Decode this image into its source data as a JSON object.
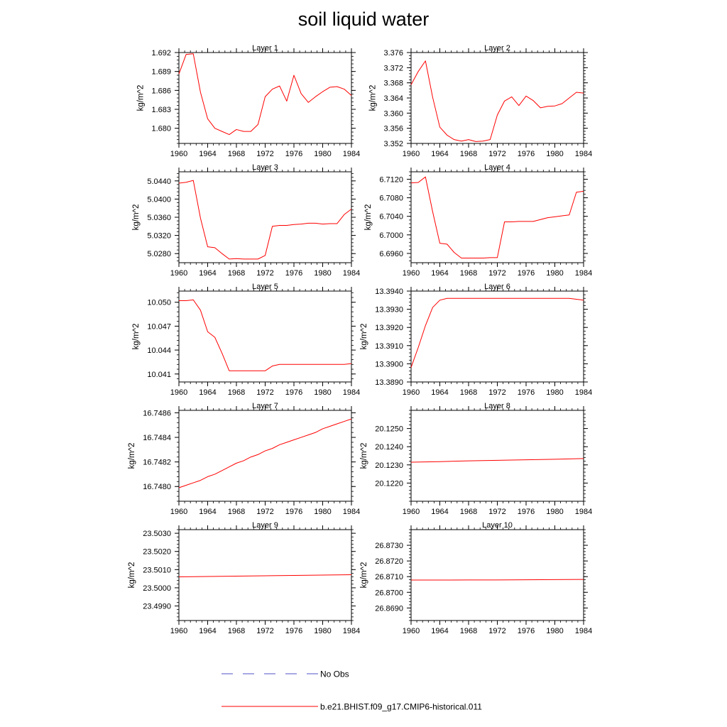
{
  "figure": {
    "title": "soil liquid water",
    "legend": [
      {
        "label": "No Obs",
        "color": "#5050c8",
        "dash": true
      },
      {
        "label": "b.e21.BHIST.f09_g17.CMIP6-historical.011",
        "color": "#ff0000",
        "dash": false
      }
    ]
  },
  "chart_data": [
    {
      "type": "line",
      "title": "Layer 1",
      "ylabel": "kg/m^2",
      "xlim": [
        1960,
        1984
      ],
      "ylim": [
        1.6776,
        1.692
      ],
      "xticks": [
        1960,
        1964,
        1968,
        1972,
        1976,
        1980,
        1984
      ],
      "yticks": [
        1.68,
        1.683,
        1.686,
        1.689,
        1.692
      ],
      "ytick_labels": [
        "1.680",
        "1.683",
        "1.686",
        "1.689",
        "1.692"
      ],
      "series": [
        {
          "color": "#ff0000",
          "x": [
            1960,
            1961,
            1962,
            1963,
            1964,
            1965,
            1966,
            1967,
            1968,
            1969,
            1970,
            1971,
            1972,
            1973,
            1974,
            1975,
            1976,
            1977,
            1978,
            1979,
            1980,
            1981,
            1982,
            1983,
            1984
          ],
          "y": [
            1.6886,
            1.6917,
            1.6918,
            1.6857,
            1.6815,
            1.68,
            1.6795,
            1.679,
            1.6798,
            1.6795,
            1.6795,
            1.6806,
            1.685,
            1.6862,
            1.6867,
            1.6843,
            1.6884,
            1.6855,
            1.6841,
            1.685,
            1.6858,
            1.6865,
            1.6866,
            1.6862,
            1.6852
          ]
        }
      ]
    },
    {
      "type": "line",
      "title": "Layer 2",
      "ylabel": "kg/m^2",
      "xlim": [
        1960,
        1984
      ],
      "ylim": [
        3.352,
        3.376
      ],
      "xticks": [
        1960,
        1964,
        1968,
        1972,
        1976,
        1980,
        1984
      ],
      "yticks": [
        3.352,
        3.356,
        3.36,
        3.364,
        3.368,
        3.372,
        3.376
      ],
      "ytick_labels": [
        "3.352",
        "3.356",
        "3.360",
        "3.364",
        "3.368",
        "3.372",
        "3.376"
      ],
      "series": [
        {
          "color": "#ff0000",
          "x": [
            1960,
            1961,
            1962,
            1963,
            1964,
            1965,
            1966,
            1967,
            1968,
            1969,
            1970,
            1971,
            1972,
            1973,
            1974,
            1975,
            1976,
            1977,
            1978,
            1979,
            1980,
            1981,
            1982,
            1983,
            1984
          ],
          "y": [
            3.3675,
            3.371,
            3.3738,
            3.3642,
            3.3563,
            3.3542,
            3.353,
            3.3526,
            3.353,
            3.3525,
            3.3526,
            3.353,
            3.3595,
            3.3632,
            3.3643,
            3.362,
            3.3645,
            3.3633,
            3.3614,
            3.3618,
            3.3619,
            3.3625,
            3.364,
            3.3655,
            3.3653
          ]
        }
      ]
    },
    {
      "type": "line",
      "title": "Layer 3",
      "ylabel": "kg/m^2",
      "xlim": [
        1960,
        1984
      ],
      "ylim": [
        5.026,
        5.046
      ],
      "xticks": [
        1960,
        1964,
        1968,
        1972,
        1976,
        1980,
        1984
      ],
      "yticks": [
        5.028,
        5.032,
        5.036,
        5.04,
        5.044
      ],
      "ytick_labels": [
        "5.0280",
        "5.0320",
        "5.0360",
        "5.0400",
        "5.0440"
      ],
      "series": [
        {
          "color": "#ff0000",
          "x": [
            1960,
            1961,
            1962,
            1963,
            1964,
            1965,
            1966,
            1967,
            1968,
            1969,
            1970,
            1971,
            1972,
            1973,
            1974,
            1975,
            1976,
            1977,
            1978,
            1979,
            1980,
            1981,
            1982,
            1983,
            1984
          ],
          "y": [
            5.0435,
            5.0437,
            5.0441,
            5.0358,
            5.0295,
            5.0293,
            5.028,
            5.0268,
            5.0269,
            5.0268,
            5.0268,
            5.0268,
            5.0276,
            5.034,
            5.0342,
            5.0342,
            5.0344,
            5.0345,
            5.0347,
            5.0347,
            5.0345,
            5.0346,
            5.0346,
            5.0366,
            5.0378
          ]
        }
      ]
    },
    {
      "type": "line",
      "title": "Layer 4",
      "ylabel": "kg/m^2",
      "xlim": [
        1960,
        1984
      ],
      "ylim": [
        6.694,
        6.7136
      ],
      "xticks": [
        1960,
        1964,
        1968,
        1972,
        1976,
        1980,
        1984
      ],
      "yticks": [
        6.696,
        6.7,
        6.704,
        6.708,
        6.712
      ],
      "ytick_labels": [
        "6.6960",
        "6.7000",
        "6.7040",
        "6.7080",
        "6.7120"
      ],
      "series": [
        {
          "color": "#ff0000",
          "x": [
            1960,
            1961,
            1962,
            1963,
            1964,
            1965,
            1966,
            1967,
            1968,
            1969,
            1970,
            1971,
            1972,
            1973,
            1974,
            1975,
            1976,
            1977,
            1978,
            1979,
            1980,
            1981,
            1982,
            1983,
            1984
          ],
          "y": [
            6.7112,
            6.7113,
            6.7125,
            6.705,
            6.6982,
            6.698,
            6.6962,
            6.695,
            6.695,
            6.695,
            6.695,
            6.6951,
            6.6951,
            6.7028,
            6.7028,
            6.7029,
            6.7029,
            6.7029,
            6.7033,
            6.7037,
            6.7039,
            6.7041,
            6.7043,
            6.7092,
            6.7094
          ]
        }
      ]
    },
    {
      "type": "line",
      "title": "Layer 5",
      "ylabel": "kg/m^2",
      "xlim": [
        1960,
        1984
      ],
      "ylim": [
        10.04,
        10.0514
      ],
      "xticks": [
        1960,
        1964,
        1968,
        1972,
        1976,
        1980,
        1984
      ],
      "yticks": [
        10.041,
        10.044,
        10.047,
        10.05
      ],
      "ytick_labels": [
        "10.041",
        "10.044",
        "10.047",
        "10.050"
      ],
      "series": [
        {
          "color": "#ff0000",
          "x": [
            1960,
            1961,
            1962,
            1963,
            1964,
            1965,
            1966,
            1967,
            1968,
            1969,
            1970,
            1971,
            1972,
            1973,
            1974,
            1975,
            1976,
            1977,
            1978,
            1979,
            1980,
            1981,
            1982,
            1983,
            1984
          ],
          "y": [
            10.0502,
            10.0502,
            10.0503,
            10.049,
            10.0463,
            10.0456,
            10.0436,
            10.0414,
            10.0414,
            10.0414,
            10.0414,
            10.0414,
            10.0414,
            10.042,
            10.0422,
            10.0422,
            10.0422,
            10.0422,
            10.0422,
            10.0422,
            10.0422,
            10.0422,
            10.0422,
            10.0422,
            10.0423
          ]
        }
      ]
    },
    {
      "type": "line",
      "title": "Layer 6",
      "ylabel": "kg/m^2",
      "xlim": [
        1960,
        1984
      ],
      "ylim": [
        13.389,
        13.394
      ],
      "xticks": [
        1960,
        1964,
        1968,
        1972,
        1976,
        1980,
        1984
      ],
      "yticks": [
        13.389,
        13.39,
        13.391,
        13.392,
        13.393,
        13.394
      ],
      "ytick_labels": [
        "13.3890",
        "13.3900",
        "13.3910",
        "13.3920",
        "13.3930",
        "13.3940"
      ],
      "series": [
        {
          "color": "#ff0000",
          "x": [
            1960,
            1961,
            1962,
            1963,
            1964,
            1965,
            1966,
            1967,
            1968,
            1970,
            1972,
            1974,
            1976,
            1978,
            1980,
            1982,
            1984
          ],
          "y": [
            13.3898,
            13.3909,
            13.3921,
            13.3931,
            13.3935,
            13.3936,
            13.3936,
            13.3936,
            13.3936,
            13.3936,
            13.3936,
            13.3936,
            13.3936,
            13.3936,
            13.3936,
            13.3936,
            13.3935
          ]
        }
      ]
    },
    {
      "type": "line",
      "title": "Layer 7",
      "ylabel": "kg/m^2",
      "xlim": [
        1960,
        1984
      ],
      "ylim": [
        16.74788,
        16.74862
      ],
      "xticks": [
        1960,
        1964,
        1968,
        1972,
        1976,
        1980,
        1984
      ],
      "yticks": [
        16.748,
        16.7482,
        16.7484,
        16.7486
      ],
      "ytick_labels": [
        "16.7480",
        "16.7482",
        "16.7484",
        "16.7486"
      ],
      "series": [
        {
          "color": "#ff0000",
          "x": [
            1960,
            1961,
            1962,
            1963,
            1964,
            1965,
            1966,
            1967,
            1968,
            1969,
            1970,
            1971,
            1972,
            1973,
            1974,
            1975,
            1976,
            1977,
            1978,
            1979,
            1980,
            1981,
            1982,
            1983,
            1984
          ],
          "y": [
            16.74799,
            16.74801,
            16.74803,
            16.74805,
            16.74808,
            16.7481,
            16.74813,
            16.74816,
            16.74819,
            16.74821,
            16.74824,
            16.74826,
            16.74829,
            16.74831,
            16.74834,
            16.74836,
            16.74838,
            16.7484,
            16.74842,
            16.74844,
            16.74847,
            16.74849,
            16.74851,
            16.74853,
            16.74855
          ]
        }
      ]
    },
    {
      "type": "line",
      "title": "Layer 8",
      "ylabel": "kg/m^2",
      "xlim": [
        1960,
        1984
      ],
      "ylim": [
        20.121,
        20.126
      ],
      "xticks": [
        1960,
        1964,
        1968,
        1972,
        1976,
        1980,
        1984
      ],
      "yticks": [
        20.122,
        20.123,
        20.124,
        20.125
      ],
      "ytick_labels": [
        "20.1220",
        "20.1230",
        "20.1240",
        "20.1250"
      ],
      "series": [
        {
          "color": "#ff0000",
          "x": [
            1960,
            1964,
            1968,
            1972,
            1976,
            1980,
            1984
          ],
          "y": [
            20.12315,
            20.12318,
            20.12322,
            20.12325,
            20.12328,
            20.12331,
            20.12335
          ]
        }
      ]
    },
    {
      "type": "line",
      "title": "Layer 9",
      "ylabel": "kg/m^2",
      "xlim": [
        1960,
        1984
      ],
      "ylim": [
        23.4982,
        23.5032
      ],
      "xticks": [
        1960,
        1964,
        1968,
        1972,
        1976,
        1980,
        1984
      ],
      "yticks": [
        23.499,
        23.5,
        23.501,
        23.502,
        23.503
      ],
      "ytick_labels": [
        "23.4990",
        "23.5000",
        "23.5010",
        "23.5020",
        "23.5030"
      ],
      "series": [
        {
          "color": "#ff0000",
          "x": [
            1960,
            1964,
            1968,
            1972,
            1976,
            1980,
            1984
          ],
          "y": [
            23.5006,
            23.50062,
            23.50064,
            23.50066,
            23.50068,
            23.5007,
            23.50072
          ]
        }
      ]
    },
    {
      "type": "line",
      "title": "Layer 10",
      "ylabel": "kg/m^2",
      "xlim": [
        1960,
        1984
      ],
      "ylim": [
        26.8682,
        26.874
      ],
      "xticks": [
        1960,
        1964,
        1968,
        1972,
        1976,
        1980,
        1984
      ],
      "yticks": [
        26.869,
        26.87,
        26.871,
        26.872,
        26.873
      ],
      "ytick_labels": [
        "26.8690",
        "26.8700",
        "26.8710",
        "26.8720",
        "26.8730"
      ],
      "series": [
        {
          "color": "#ff0000",
          "x": [
            1960,
            1964,
            1968,
            1972,
            1976,
            1980,
            1984
          ],
          "y": [
            26.87078,
            26.87078,
            26.87079,
            26.87079,
            26.8708,
            26.87081,
            26.87082
          ]
        }
      ]
    }
  ]
}
